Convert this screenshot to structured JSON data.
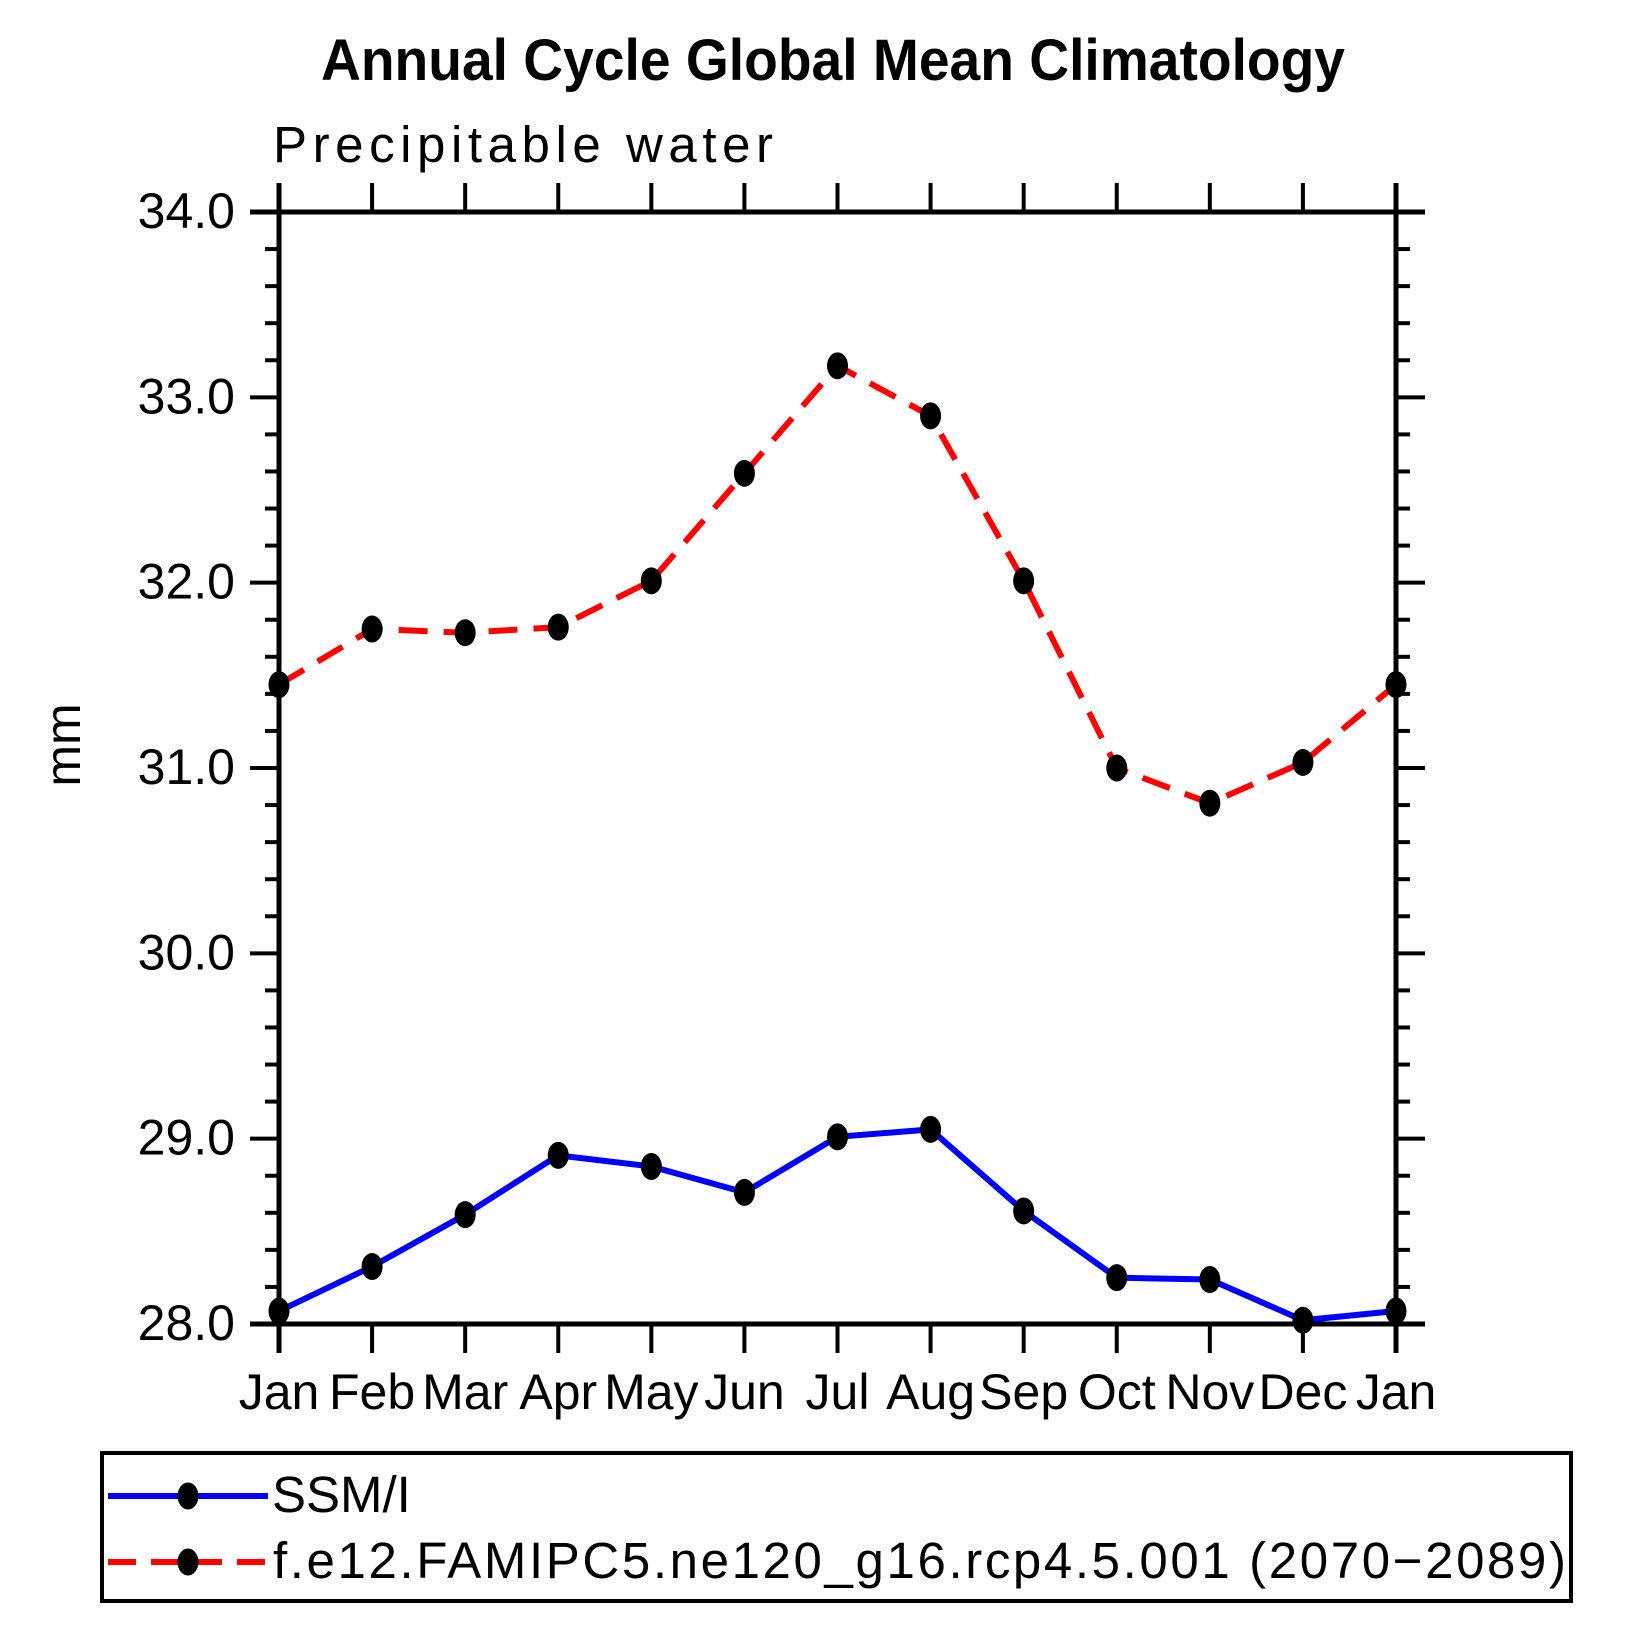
{
  "title": "Annual Cycle Global Mean Climatology",
  "subtitle": "Precipitable water",
  "y_axis_label": "mm",
  "colors": {
    "obs_line": "#0000ff",
    "model_line": "#ff0000",
    "marker": "#000000",
    "axis": "#000000",
    "background": "#ffffff"
  },
  "legend": {
    "entries": [
      {
        "label": "SSM/I",
        "line_style": "solid",
        "line_color": "#0000ff",
        "marker": "filled-circle"
      },
      {
        "label": "f.e12.FAMIPC5.ne120_g16.rcp4.5.001 (2070−2089)",
        "line_style": "dashed",
        "line_color": "#ff0000",
        "marker": "filled-circle"
      }
    ]
  },
  "chart_data": {
    "type": "line",
    "title": "Annual Cycle Global Mean Climatology",
    "subtitle": "Precipitable water",
    "xlabel": "",
    "ylabel": "mm",
    "x_categories": [
      "Jan",
      "Feb",
      "Mar",
      "Apr",
      "May",
      "Jun",
      "Jul",
      "Aug",
      "Sep",
      "Oct",
      "Nov",
      "Dec",
      "Jan"
    ],
    "ylim": [
      28.0,
      34.0
    ],
    "y_major_tick_labels": [
      "28.0",
      "29.0",
      "30.0",
      "31.0",
      "32.0",
      "33.0",
      "34.0"
    ],
    "y_major_step": 1.0,
    "y_minor_step": 0.2,
    "grid": false,
    "legend_position": "bottom-box",
    "series": [
      {
        "name": "SSM/I",
        "color": "#0000ff",
        "style": "solid",
        "marker": "filled-circle",
        "marker_color": "#000000",
        "values": [
          28.07,
          28.31,
          28.59,
          28.91,
          28.85,
          28.71,
          29.01,
          29.05,
          28.61,
          28.25,
          28.24,
          28.02,
          28.07
        ]
      },
      {
        "name": "f.e12.FAMIPC5.ne120_g16.rcp4.5.001 (2070−2089)",
        "color": "#ff0000",
        "style": "dashed",
        "marker": "filled-circle",
        "marker_color": "#000000",
        "values": [
          31.45,
          31.75,
          31.73,
          31.76,
          32.01,
          32.59,
          33.17,
          32.9,
          32.01,
          31.0,
          30.81,
          31.03,
          31.45
        ]
      }
    ]
  }
}
